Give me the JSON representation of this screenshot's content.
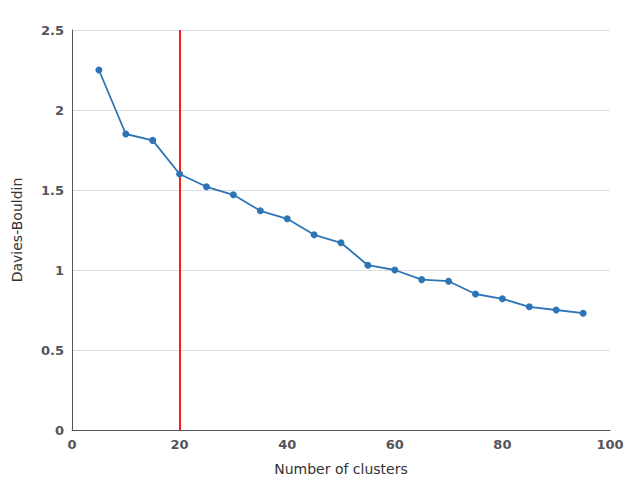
{
  "chart_data": {
    "type": "line",
    "xlabel": "Number of clusters",
    "ylabel": "Davies-Bouldin",
    "x": [
      5,
      10,
      15,
      20,
      25,
      30,
      35,
      40,
      45,
      50,
      55,
      60,
      65,
      70,
      75,
      80,
      85,
      90,
      95
    ],
    "values": [
      2.25,
      1.85,
      1.81,
      1.6,
      1.52,
      1.47,
      1.37,
      1.32,
      1.22,
      1.17,
      1.03,
      1.0,
      0.94,
      0.93,
      0.85,
      0.82,
      0.77,
      0.75,
      0.73
    ],
    "color": "#2E75B6",
    "marker": "circle",
    "vlines": [
      {
        "x": 20,
        "color": "red"
      }
    ],
    "xlim": [
      0,
      100
    ],
    "ylim": [
      0,
      2.5
    ],
    "xticks": [
      0,
      20,
      40,
      60,
      80,
      100
    ],
    "yticks": [
      0,
      0.5,
      1,
      1.5,
      2,
      2.5
    ],
    "grid": true
  }
}
